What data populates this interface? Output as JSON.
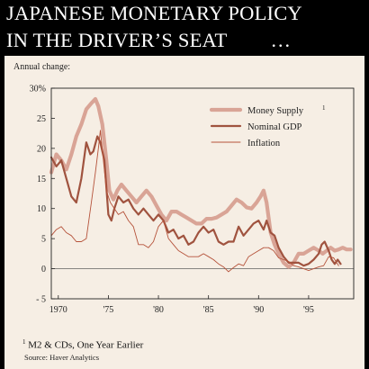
{
  "title": {
    "line1": "JAPANESE MONETARY POLICY",
    "line2": "IN THE DRIVER’S SEAT",
    "ellipsis": "…"
  },
  "footnote": {
    "marker": "1",
    "text": "M2 & CDs, One Year Earlier"
  },
  "source": "Source: Haver Analytics",
  "colors": {
    "background": "#000000",
    "panel": "#f6eee4",
    "money_supply": "#d9a496",
    "nominal_gdp": "#a0533f",
    "inflation": "#b5523a"
  },
  "chart_data": {
    "type": "line",
    "ylabel": "Annual change:",
    "ylim": [
      -5,
      30
    ],
    "xlim": [
      1969.3,
      1999.5
    ],
    "y_ticks": [
      {
        "value": 30,
        "label": "30%"
      },
      {
        "value": 25,
        "label": "25"
      },
      {
        "value": 20,
        "label": "20"
      },
      {
        "value": 15,
        "label": "15"
      },
      {
        "value": 10,
        "label": "10"
      },
      {
        "value": 5,
        "label": "5"
      },
      {
        "value": 0,
        "label": "0"
      },
      {
        "value": -5,
        "label": "- 5"
      }
    ],
    "x_ticks": [
      {
        "value": 1970,
        "label": "1970"
      },
      {
        "value": 1975,
        "label": "'75"
      },
      {
        "value": 1980,
        "label": "'80"
      },
      {
        "value": 1985,
        "label": "'85"
      },
      {
        "value": 1990,
        "label": "'90"
      },
      {
        "value": 1995,
        "label": "'95"
      }
    ],
    "legend_position": "top-right",
    "series": [
      {
        "name": "Money Supply",
        "legend_marker": "1",
        "points": [
          [
            1969.3,
            16
          ],
          [
            1969.8,
            19
          ],
          [
            1970.3,
            18
          ],
          [
            1970.8,
            16.5
          ],
          [
            1971.3,
            19
          ],
          [
            1971.8,
            22
          ],
          [
            1972.3,
            24
          ],
          [
            1972.8,
            26.5
          ],
          [
            1973.3,
            27.5
          ],
          [
            1973.7,
            28.2
          ],
          [
            1974.0,
            27
          ],
          [
            1974.4,
            24
          ],
          [
            1974.8,
            18
          ],
          [
            1975.1,
            13
          ],
          [
            1975.5,
            11.5
          ],
          [
            1975.9,
            13
          ],
          [
            1976.3,
            14
          ],
          [
            1976.8,
            13
          ],
          [
            1977.3,
            12
          ],
          [
            1977.8,
            11
          ],
          [
            1978.3,
            12
          ],
          [
            1978.8,
            13
          ],
          [
            1979.3,
            12
          ],
          [
            1979.8,
            10.5
          ],
          [
            1980.3,
            9
          ],
          [
            1980.8,
            8
          ],
          [
            1981.3,
            9.5
          ],
          [
            1981.8,
            9.5
          ],
          [
            1982.3,
            9
          ],
          [
            1982.8,
            8.5
          ],
          [
            1983.3,
            8
          ],
          [
            1983.8,
            7.5
          ],
          [
            1984.3,
            7.5
          ],
          [
            1984.8,
            8.3
          ],
          [
            1985.3,
            8.3
          ],
          [
            1985.8,
            8.5
          ],
          [
            1986.3,
            9
          ],
          [
            1986.8,
            9.5
          ],
          [
            1987.3,
            10.5
          ],
          [
            1987.8,
            11.5
          ],
          [
            1988.3,
            11
          ],
          [
            1988.8,
            10.2
          ],
          [
            1989.3,
            10
          ],
          [
            1989.8,
            11
          ],
          [
            1990.2,
            12
          ],
          [
            1990.5,
            13
          ],
          [
            1990.8,
            11
          ],
          [
            1991.2,
            6
          ],
          [
            1991.6,
            4
          ],
          [
            1992.0,
            2.5
          ],
          [
            1992.5,
            1
          ],
          [
            1993.0,
            0.3
          ],
          [
            1993.5,
            1
          ],
          [
            1994.0,
            2.5
          ],
          [
            1994.5,
            2.5
          ],
          [
            1995.0,
            3
          ],
          [
            1995.5,
            3.5
          ],
          [
            1996.0,
            3
          ],
          [
            1996.4,
            2.5
          ],
          [
            1996.8,
            3
          ],
          [
            1997.2,
            3.5
          ],
          [
            1997.6,
            3
          ],
          [
            1998.0,
            3.2
          ],
          [
            1998.4,
            3.5
          ],
          [
            1998.8,
            3.2
          ],
          [
            1999.2,
            3.2
          ]
        ]
      },
      {
        "name": "Nominal GDP",
        "points": [
          [
            1969.3,
            18.5
          ],
          [
            1969.8,
            17
          ],
          [
            1970.3,
            18
          ],
          [
            1970.8,
            15
          ],
          [
            1971.3,
            12
          ],
          [
            1971.8,
            11
          ],
          [
            1972.3,
            15
          ],
          [
            1972.8,
            21
          ],
          [
            1973.2,
            19
          ],
          [
            1973.5,
            19.5
          ],
          [
            1973.9,
            22
          ],
          [
            1974.2,
            21
          ],
          [
            1974.6,
            18
          ],
          [
            1975.0,
            9
          ],
          [
            1975.3,
            8
          ],
          [
            1975.6,
            10
          ],
          [
            1976.0,
            12
          ],
          [
            1976.5,
            11
          ],
          [
            1977.0,
            11.5
          ],
          [
            1977.5,
            10
          ],
          [
            1978.0,
            9
          ],
          [
            1978.5,
            10
          ],
          [
            1979.0,
            9
          ],
          [
            1979.5,
            8
          ],
          [
            1980.0,
            9
          ],
          [
            1980.5,
            8
          ],
          [
            1981.0,
            6
          ],
          [
            1981.5,
            6.5
          ],
          [
            1982.0,
            5
          ],
          [
            1982.5,
            5.5
          ],
          [
            1983.0,
            4
          ],
          [
            1983.5,
            4.5
          ],
          [
            1984.0,
            6
          ],
          [
            1984.5,
            7
          ],
          [
            1985.0,
            6
          ],
          [
            1985.5,
            6.5
          ],
          [
            1986.0,
            4.5
          ],
          [
            1986.5,
            4
          ],
          [
            1987.0,
            4.5
          ],
          [
            1987.5,
            4.5
          ],
          [
            1988.0,
            7
          ],
          [
            1988.5,
            5.5
          ],
          [
            1989.0,
            6.5
          ],
          [
            1989.5,
            7.5
          ],
          [
            1990.0,
            8
          ],
          [
            1990.5,
            6.5
          ],
          [
            1990.8,
            8
          ],
          [
            1991.2,
            6
          ],
          [
            1991.6,
            5.5
          ],
          [
            1992.0,
            3.5
          ],
          [
            1992.5,
            2
          ],
          [
            1993.0,
            1
          ],
          [
            1993.5,
            1
          ],
          [
            1994.0,
            1
          ],
          [
            1994.5,
            0.5
          ],
          [
            1995.0,
            0.8
          ],
          [
            1995.5,
            1.5
          ],
          [
            1996.0,
            2.5
          ],
          [
            1996.3,
            4
          ],
          [
            1996.6,
            4.5
          ],
          [
            1997.0,
            3
          ],
          [
            1997.3,
            1.5
          ],
          [
            1997.6,
            0.8
          ],
          [
            1997.9,
            1.5
          ],
          [
            1998.2,
            0.8
          ]
        ]
      },
      {
        "name": "Inflation",
        "points": [
          [
            1969.3,
            5.5
          ],
          [
            1969.8,
            6.5
          ],
          [
            1970.3,
            7
          ],
          [
            1970.8,
            6
          ],
          [
            1971.3,
            5.5
          ],
          [
            1971.8,
            4.5
          ],
          [
            1972.3,
            4.5
          ],
          [
            1972.8,
            5
          ],
          [
            1973.3,
            11
          ],
          [
            1973.7,
            16
          ],
          [
            1974.0,
            20
          ],
          [
            1974.2,
            23
          ],
          [
            1974.5,
            18
          ],
          [
            1974.8,
            13
          ],
          [
            1975.2,
            11
          ],
          [
            1975.6,
            10
          ],
          [
            1976.0,
            9
          ],
          [
            1976.5,
            9.5
          ],
          [
            1977.0,
            8
          ],
          [
            1977.5,
            7
          ],
          [
            1978.0,
            4
          ],
          [
            1978.5,
            4
          ],
          [
            1979.0,
            3.5
          ],
          [
            1979.5,
            4.5
          ],
          [
            1980.0,
            7
          ],
          [
            1980.5,
            8
          ],
          [
            1981.0,
            5
          ],
          [
            1981.5,
            4
          ],
          [
            1982.0,
            3
          ],
          [
            1982.5,
            2.5
          ],
          [
            1983.0,
            2
          ],
          [
            1983.5,
            2
          ],
          [
            1984.0,
            2
          ],
          [
            1984.5,
            2.5
          ],
          [
            1985.0,
            2
          ],
          [
            1985.5,
            1.5
          ],
          [
            1986.0,
            0.8
          ],
          [
            1986.5,
            0.3
          ],
          [
            1987.0,
            -0.5
          ],
          [
            1987.5,
            0.2
          ],
          [
            1988.0,
            0.8
          ],
          [
            1988.5,
            0.5
          ],
          [
            1989.0,
            2
          ],
          [
            1989.5,
            2.5
          ],
          [
            1990.0,
            3
          ],
          [
            1990.5,
            3.5
          ],
          [
            1991.0,
            3.5
          ],
          [
            1991.5,
            3
          ],
          [
            1992.0,
            1.8
          ],
          [
            1992.5,
            1.5
          ],
          [
            1993.0,
            1.2
          ],
          [
            1993.5,
            0.5
          ],
          [
            1994.0,
            0.3
          ],
          [
            1994.5,
            0
          ],
          [
            1995.0,
            -0.3
          ],
          [
            1995.5,
            0
          ],
          [
            1996.0,
            0.3
          ],
          [
            1996.5,
            0.5
          ],
          [
            1997.0,
            2
          ],
          [
            1997.5,
            1.8
          ],
          [
            1998.0,
            0.5
          ]
        ]
      }
    ]
  }
}
